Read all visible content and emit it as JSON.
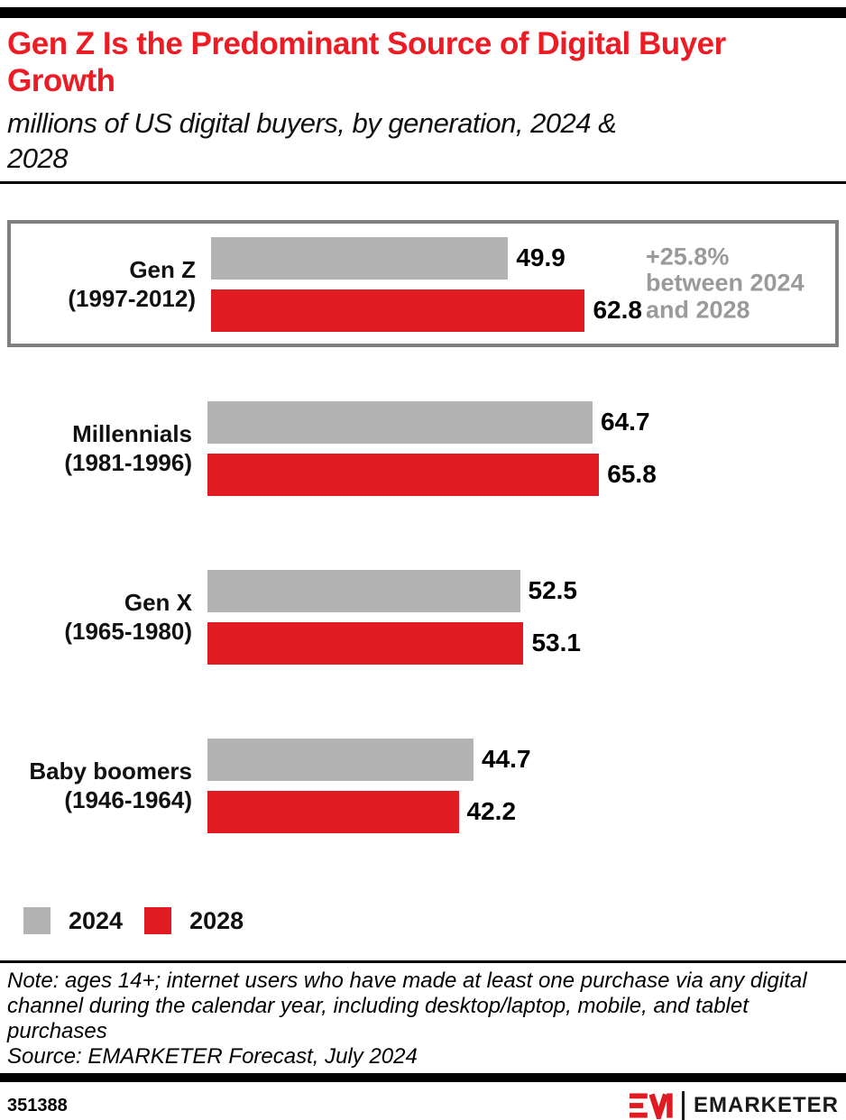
{
  "header": {
    "title": "Gen Z Is the Predominant Source of Digital Buyer Growth",
    "title_lines": [
      "Gen Z Is the Predominant Source of Digital Buyer",
      "Growth"
    ],
    "subtitle": "millions of US digital buyers, by generation, 2024 & 2028",
    "subtitle_lines": [
      "millions of US digital buyers, by generation, 2024 &",
      "2028"
    ]
  },
  "colors": {
    "title_red": "#ed1c24",
    "bar_red": "#e11b22",
    "bar_gray": "#b3b3b3",
    "annotation_gray": "#9a9a9a",
    "box_border_gray": "#7f7f7f",
    "black": "#000000"
  },
  "chart_data": {
    "type": "bar",
    "orientation": "horizontal",
    "title": "Gen Z Is the Predominant Source of Digital Buyer Growth",
    "subtitle": "millions of US digital buyers, by generation, 2024 & 2028",
    "unit": "millions of US digital buyers",
    "categories": [
      "Gen Z (1997-2012)",
      "Millennials (1981-1996)",
      "Gen X (1965-1980)",
      "Baby boomers (1946-1964)"
    ],
    "series": [
      {
        "name": "2024",
        "color": "#b3b3b3",
        "values": [
          49.9,
          64.7,
          52.5,
          44.7
        ]
      },
      {
        "name": "2028",
        "color": "#e11b22",
        "values": [
          62.8,
          65.8,
          53.1,
          42.2
        ]
      }
    ],
    "xlim": [
      0,
      70
    ],
    "grid": false,
    "legend_position": "bottom-left",
    "annotation": "+25.8% between 2024 and 2028",
    "annotation_target": "Gen Z (1997-2012)",
    "groups": [
      {
        "name": "Gen Z",
        "years": "(1997-2012)",
        "v2024": "49.9",
        "v2028": "62.8"
      },
      {
        "name": "Millennials",
        "years": "(1981-1996)",
        "v2024": "64.7",
        "v2028": "65.8"
      },
      {
        "name": "Gen X",
        "years": "(1965-1980)",
        "v2024": "52.5",
        "v2028": "53.1"
      },
      {
        "name": "Baby boomers",
        "years": "(1946-1964)",
        "v2024": "44.7",
        "v2028": "42.2"
      }
    ]
  },
  "annotation": {
    "lines": [
      "+25.8%",
      "between 2024",
      "and 2028"
    ]
  },
  "legend": {
    "items": [
      {
        "label": "2024"
      },
      {
        "label": "2028"
      }
    ]
  },
  "footnote": {
    "note": "Note: ages 14+; internet users who have made at least one purchase via any digital channel during the calendar year, including desktop/laptop, mobile, and tablet purchases",
    "source": "Source: EMARKETER Forecast, July 2024"
  },
  "footer": {
    "chart_id": "351388",
    "brand": "EMARKETER"
  }
}
